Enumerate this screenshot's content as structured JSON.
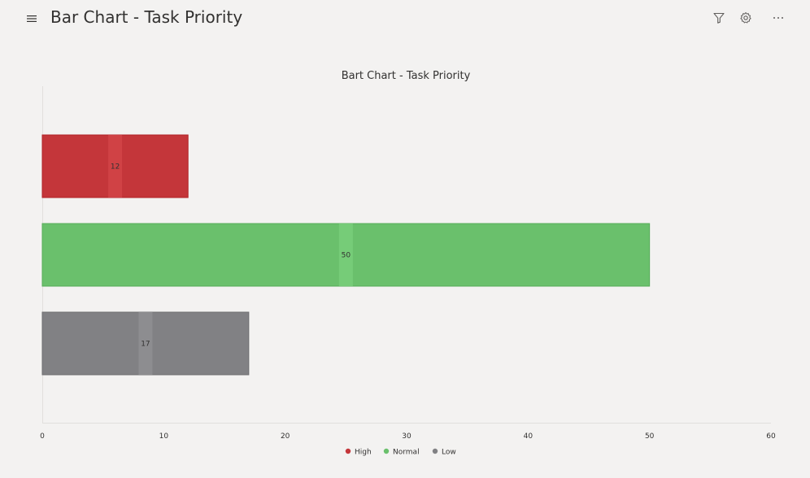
{
  "header": {
    "title": "Bar Chart - Task Priority",
    "menu_icon": "hamburger-menu-icon",
    "filter_icon": "filter-icon",
    "settings_icon": "gear-icon",
    "more_icon": "more-ellipsis-icon"
  },
  "chart_data": {
    "type": "bar",
    "orientation": "horizontal",
    "title": "Bart Chart - Task Priority",
    "categories": [
      "High",
      "Normal",
      "Low"
    ],
    "values": [
      12,
      50,
      17
    ],
    "colors": [
      "#c4363a",
      "#6ac06c",
      "#818184"
    ],
    "xlim": [
      0,
      60
    ],
    "xticks": [
      0,
      10,
      20,
      30,
      40,
      50,
      60
    ],
    "xlabel": "",
    "ylabel": "",
    "legend": {
      "position": "bottom",
      "entries": [
        "High",
        "Normal",
        "Low"
      ]
    },
    "grid": false
  }
}
